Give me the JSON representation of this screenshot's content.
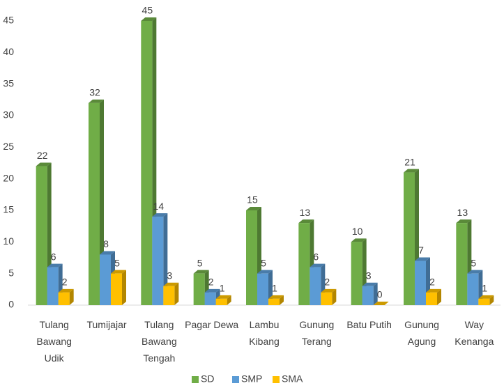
{
  "chart_data": {
    "type": "bar3d",
    "categories": [
      "Tulang\nBawang\nUdik",
      "Tumijajar",
      "Tulang\nBawang\nTengah",
      "Pagar Dewa",
      "Lambu\nKibang",
      "Gunung\nTerang",
      "Batu Putih",
      "Gunung\nAgung",
      "Way\nKenanga"
    ],
    "series": [
      {
        "name": "SD",
        "color": "#70ad47",
        "values": [
          22,
          32,
          45,
          5,
          15,
          13,
          10,
          21,
          13
        ]
      },
      {
        "name": "SMP",
        "color": "#5b9bd5",
        "values": [
          6,
          8,
          14,
          2,
          5,
          6,
          3,
          7,
          5
        ]
      },
      {
        "name": "SMA",
        "color": "#ffc000",
        "values": [
          2,
          5,
          3,
          1,
          1,
          2,
          0,
          2,
          1
        ]
      }
    ],
    "ylim": [
      0,
      45
    ],
    "yticks": [
      0,
      5,
      10,
      15,
      20,
      25,
      30,
      35,
      40,
      45
    ],
    "grid": false,
    "legend": "bottom"
  }
}
